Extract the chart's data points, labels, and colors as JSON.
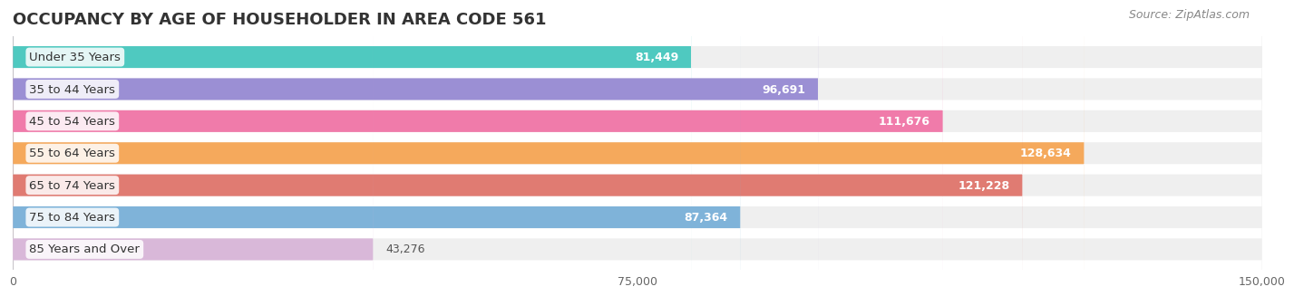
{
  "title": "OCCUPANCY BY AGE OF HOUSEHOLDER IN AREA CODE 561",
  "source": "Source: ZipAtlas.com",
  "categories": [
    "Under 35 Years",
    "35 to 44 Years",
    "45 to 54 Years",
    "55 to 64 Years",
    "65 to 74 Years",
    "75 to 84 Years",
    "85 Years and Over"
  ],
  "values": [
    81449,
    96691,
    111676,
    128634,
    121228,
    87364,
    43276
  ],
  "bar_colors": [
    "#4fc9c0",
    "#9b8fd4",
    "#f07baa",
    "#f5a95c",
    "#e07b72",
    "#7fb3d9",
    "#d9b8d9"
  ],
  "bar_bg_color": "#efefef",
  "xlim": [
    0,
    150000
  ],
  "xticks": [
    0,
    75000,
    150000
  ],
  "xticklabels": [
    "0",
    "75,000",
    "150,000"
  ],
  "fig_bg_color": "#ffffff",
  "title_fontsize": 13,
  "label_fontsize": 9.5,
  "value_fontsize": 9,
  "source_fontsize": 9
}
